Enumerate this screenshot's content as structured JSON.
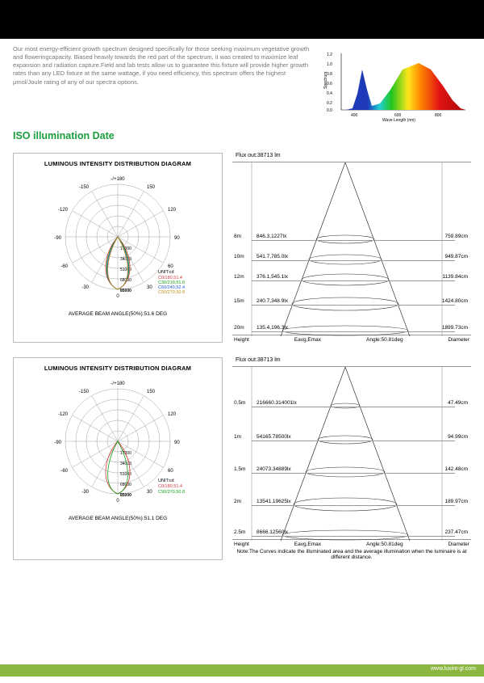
{
  "intro": "Our most energy-efficient growth spectrum designed specifically for those seeking maximum vegetative growth and floweringcapacity. Biased heavily towards the red part of the spectrum, it was created to maximize leaf expansion and radiation capture.Field and lab tests allow us to guarantee this fixture will provide higher growth rates than any LED fixture at the same wattage, if you need efficiency, this spectrum offers the highest μmol/Joule rating of any of our spectra options.",
  "section_title": "ISO illumination Date",
  "spectrum": {
    "y_max": 1.2,
    "colors": {
      "blue": "#1e3ab8",
      "cyan": "#22d0d6",
      "green": "#1fc41f",
      "yellow": "#ffe61a",
      "orange": "#ff8a00",
      "red": "#e21313"
    },
    "x_label": "Wave Length (nm)"
  },
  "polar": {
    "title": "LUMINOUS INTENSITY DISTRIBUTION DIAGRAM",
    "rings": [
      "17000",
      "34000",
      "51000",
      "68000",
      "85000"
    ],
    "angles": [
      "-/+180",
      "-150",
      "150",
      "-120",
      "120",
      "-90",
      "90",
      "-60",
      "60",
      "-30",
      "30",
      "0"
    ],
    "unit": "UNIT:cd",
    "legend": [
      "C0/180,51.4",
      "C30/210,51.6",
      "C60/240,52.4",
      "C90/270,50.8"
    ],
    "legend_colors": [
      "#d43b3b",
      "#18a018",
      "#1e5cd8",
      "#c09015"
    ]
  },
  "polar2": {
    "legend": [
      "C0/180,51.4",
      "C90/270,50.8"
    ],
    "legend_colors": [
      "#d43b3b",
      "#18a018"
    ],
    "footer": "AVERAGE BEAM ANGLE(50%):51.1 DEG"
  },
  "polar1_footer": "AVERAGE BEAM ANGLE(50%):51.6 DEG",
  "beam1": {
    "flux": "Flux out:38713 lm",
    "rows": [
      {
        "h": "8m",
        "lux": "846.3,1227lx",
        "dia": "759.89cm"
      },
      {
        "h": "10m",
        "lux": "541.7,785.0lx",
        "dia": "949.87cm"
      },
      {
        "h": "12m",
        "lux": "376.1,545.1lx",
        "dia": "1139.84cm"
      },
      {
        "h": "15m",
        "lux": "240.7,348.9lx",
        "dia": "1424.80cm"
      },
      {
        "h": "20m",
        "lux": "135.4,196.3lx",
        "dia": "1899.73cm"
      }
    ],
    "footer": {
      "l": "Height",
      "c1": "Eavg,Emax",
      "c2": "Angle:50.81deg",
      "r": "Diameter"
    }
  },
  "beam2": {
    "flux": "Flux out:38713 lm",
    "rows": [
      {
        "h": "0.5m",
        "lux": "216660.314001lx",
        "dia": "47.49cm"
      },
      {
        "h": "1m",
        "lux": "54165.78500lx",
        "dia": "94.99cm"
      },
      {
        "h": "1.5m",
        "lux": "24073.34889lx",
        "dia": "142.48cm"
      },
      {
        "h": "2m",
        "lux": "13541.19625lx",
        "dia": "189.97cm"
      },
      {
        "h": "2.5m",
        "lux": "8666.12560lx",
        "dia": "237.47cm"
      }
    ],
    "footer": {
      "l": "Height",
      "c1": "Eavg,Emax",
      "c2": "Angle:50.81deg",
      "r": "Diameter"
    }
  },
  "note": "Note:The Curves indicate the illuminated area and the average illumination when the luminaire is at different distance.",
  "website": "www.luxint-gl.com"
}
